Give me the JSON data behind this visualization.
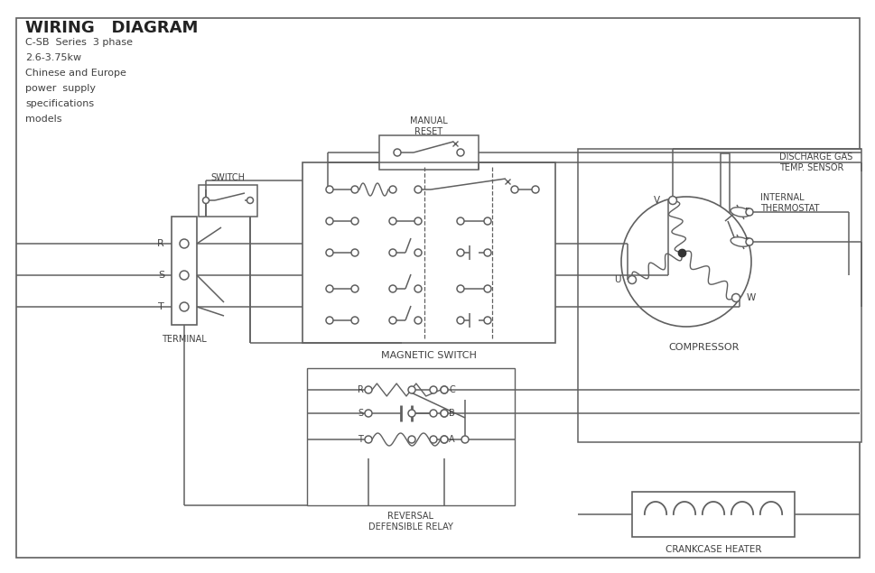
{
  "title": "WIRING   DIAGRAM",
  "subtitle_lines": [
    "C-SB  Series  3 phase",
    "2.6-3.75kw",
    "Chinese and Europe",
    "power  supply",
    "specifications",
    "models"
  ],
  "line_color": "#606060",
  "text_color": "#404040",
  "bg_color": "#ffffff"
}
